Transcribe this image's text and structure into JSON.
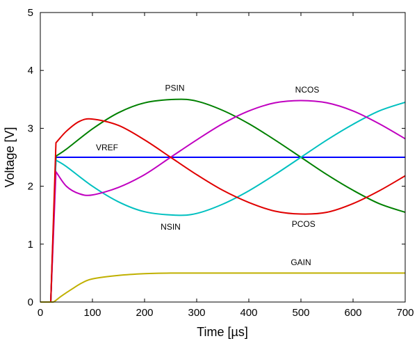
{
  "chart_data": {
    "type": "line",
    "xlabel": "Time [µs]",
    "ylabel": "Voltage [V]",
    "xlim": [
      0,
      700
    ],
    "ylim": [
      0,
      5
    ],
    "xticks": [
      0,
      100,
      200,
      300,
      400,
      500,
      600,
      700
    ],
    "yticks": [
      0,
      1,
      2,
      3,
      4,
      5
    ],
    "grid": false,
    "legend": "none",
    "series": [
      {
        "name": "VREF",
        "color": "#0000ff",
        "x": [
          0,
          15,
          20,
          30,
          40,
          100,
          200,
          300,
          400,
          500,
          600,
          700
        ],
        "y": [
          0,
          0,
          0,
          2.5,
          2.5,
          2.5,
          2.5,
          2.5,
          2.5,
          2.5,
          2.5,
          2.5
        ]
      },
      {
        "name": "PSIN",
        "color": "#008000",
        "x": [
          0,
          15,
          20,
          30,
          50,
          100,
          150,
          200,
          260,
          300,
          350,
          400,
          450,
          500,
          550,
          600,
          650,
          700
        ],
        "y": [
          0,
          0,
          0,
          2.52,
          2.64,
          2.99,
          3.27,
          3.44,
          3.5,
          3.47,
          3.31,
          3.08,
          2.8,
          2.5,
          2.2,
          1.93,
          1.7,
          1.55
        ]
      },
      {
        "name": "NSIN",
        "color": "#00c0c0",
        "x": [
          0,
          15,
          20,
          30,
          50,
          100,
          150,
          200,
          260,
          300,
          350,
          400,
          450,
          500,
          550,
          600,
          650,
          700
        ],
        "y": [
          0,
          0,
          0,
          2.45,
          2.34,
          2.0,
          1.73,
          1.56,
          1.5,
          1.53,
          1.69,
          1.92,
          2.2,
          2.5,
          2.8,
          3.07,
          3.3,
          3.45
        ]
      },
      {
        "name": "NCOS",
        "color": "#c000c0",
        "x": [
          0,
          15,
          20,
          30,
          50,
          75,
          100,
          150,
          200,
          250,
          300,
          350,
          400,
          450,
          500,
          550,
          600,
          650,
          700
        ],
        "y": [
          0,
          0,
          0,
          2.25,
          2.0,
          1.87,
          1.85,
          1.98,
          2.2,
          2.5,
          2.8,
          3.08,
          3.3,
          3.44,
          3.48,
          3.44,
          3.3,
          3.08,
          2.82
        ]
      },
      {
        "name": "PCOS",
        "color": "#e00000",
        "x": [
          0,
          15,
          20,
          30,
          50,
          75,
          100,
          150,
          200,
          250,
          300,
          350,
          400,
          450,
          500,
          550,
          600,
          650,
          700
        ],
        "y": [
          0,
          0,
          0,
          2.75,
          2.95,
          3.12,
          3.16,
          3.05,
          2.8,
          2.5,
          2.2,
          1.93,
          1.72,
          1.57,
          1.52,
          1.55,
          1.7,
          1.92,
          2.18
        ]
      },
      {
        "name": "GAIN",
        "color": "#c0b000",
        "x": [
          0,
          15,
          25,
          40,
          60,
          80,
          100,
          150,
          200,
          250,
          300,
          400,
          500,
          600,
          700
        ],
        "y": [
          0,
          0,
          0,
          0.1,
          0.22,
          0.33,
          0.4,
          0.46,
          0.49,
          0.5,
          0.5,
          0.5,
          0.5,
          0.5,
          0.5
        ]
      }
    ],
    "annotations": [
      {
        "text": "PSIN",
        "x": 258,
        "y": 3.65
      },
      {
        "text": "NCOS",
        "x": 512,
        "y": 3.62
      },
      {
        "text": "VREF",
        "x": 128,
        "y": 2.62
      },
      {
        "text": "NSIN",
        "x": 250,
        "y": 1.25
      },
      {
        "text": "PCOS",
        "x": 505,
        "y": 1.3
      },
      {
        "text": "GAIN",
        "x": 500,
        "y": 0.64
      }
    ]
  }
}
